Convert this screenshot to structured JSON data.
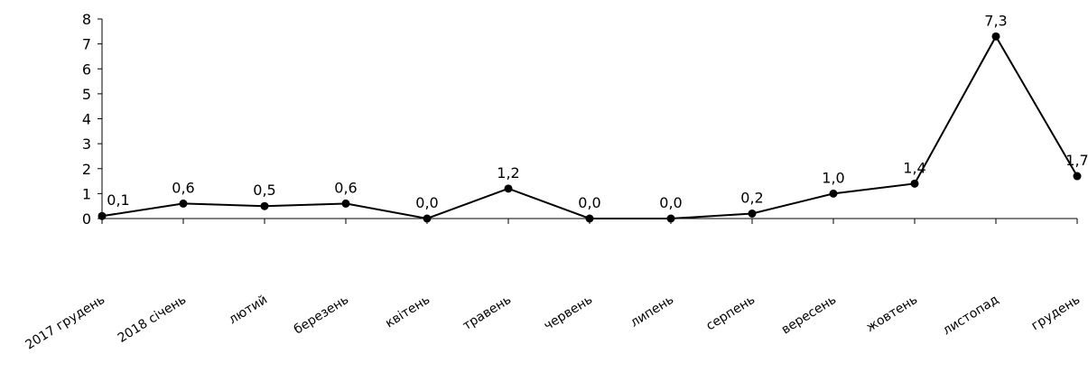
{
  "chart_data": {
    "type": "line",
    "title": "",
    "xlabel": "",
    "ylabel": "",
    "ylim": [
      0,
      8
    ],
    "yticks": [
      0,
      1,
      2,
      3,
      4,
      5,
      6,
      7,
      8
    ],
    "grid": false,
    "legend": "none",
    "categories": [
      "2017 грудень",
      "2018 січень",
      "лютий",
      "березень",
      "квітень",
      "травень",
      "червень",
      "липень",
      "серпень",
      "вересень",
      "жовтень",
      "листопад",
      "грудень"
    ],
    "values": [
      0.1,
      0.6,
      0.5,
      0.6,
      0.0,
      1.2,
      0.0,
      0.0,
      0.2,
      1.0,
      1.4,
      7.3,
      1.7
    ],
    "data_labels": [
      "0,1",
      "0,6",
      "0,5",
      "0,6",
      "0,0",
      "1,2",
      "0,0",
      "0,0",
      "0,2",
      "1,0",
      "1,4",
      "7,3",
      "1,7"
    ],
    "colors": {
      "line": "#000000",
      "marker": "#000000",
      "axis": "#000000"
    }
  }
}
